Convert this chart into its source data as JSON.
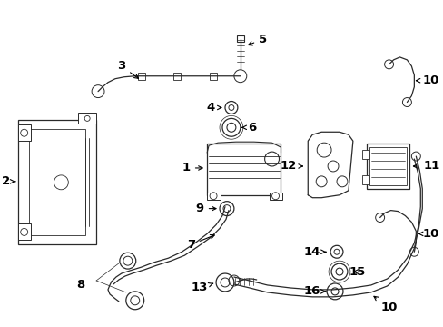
{
  "bg_color": "#ffffff",
  "line_color": "#2a2a2a",
  "lw": 0.9,
  "figsize": [
    4.89,
    3.6
  ],
  "dpi": 100
}
